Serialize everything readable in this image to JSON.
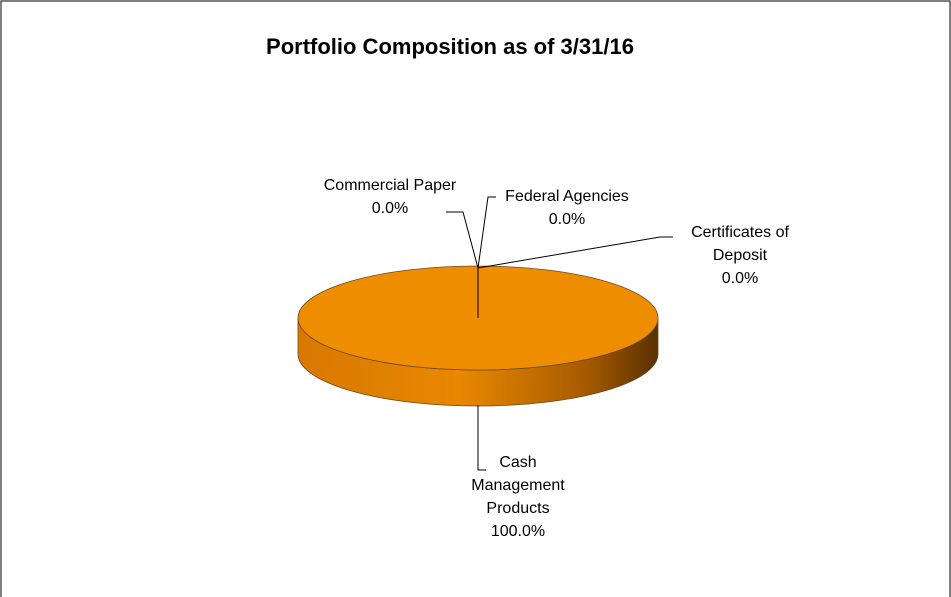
{
  "chart_data": {
    "type": "pie3d",
    "title": "Portfolio Composition as of 3/31/16",
    "categories": [
      "Commercial Paper",
      "Federal Agencies",
      "Certificates of Deposit",
      "Cash Management Products"
    ],
    "values": [
      0,
      0,
      0,
      100
    ],
    "value_labels": [
      "0.0%",
      "0.0%",
      "0.0%",
      "100.0%"
    ],
    "color": "#ef8d00"
  }
}
